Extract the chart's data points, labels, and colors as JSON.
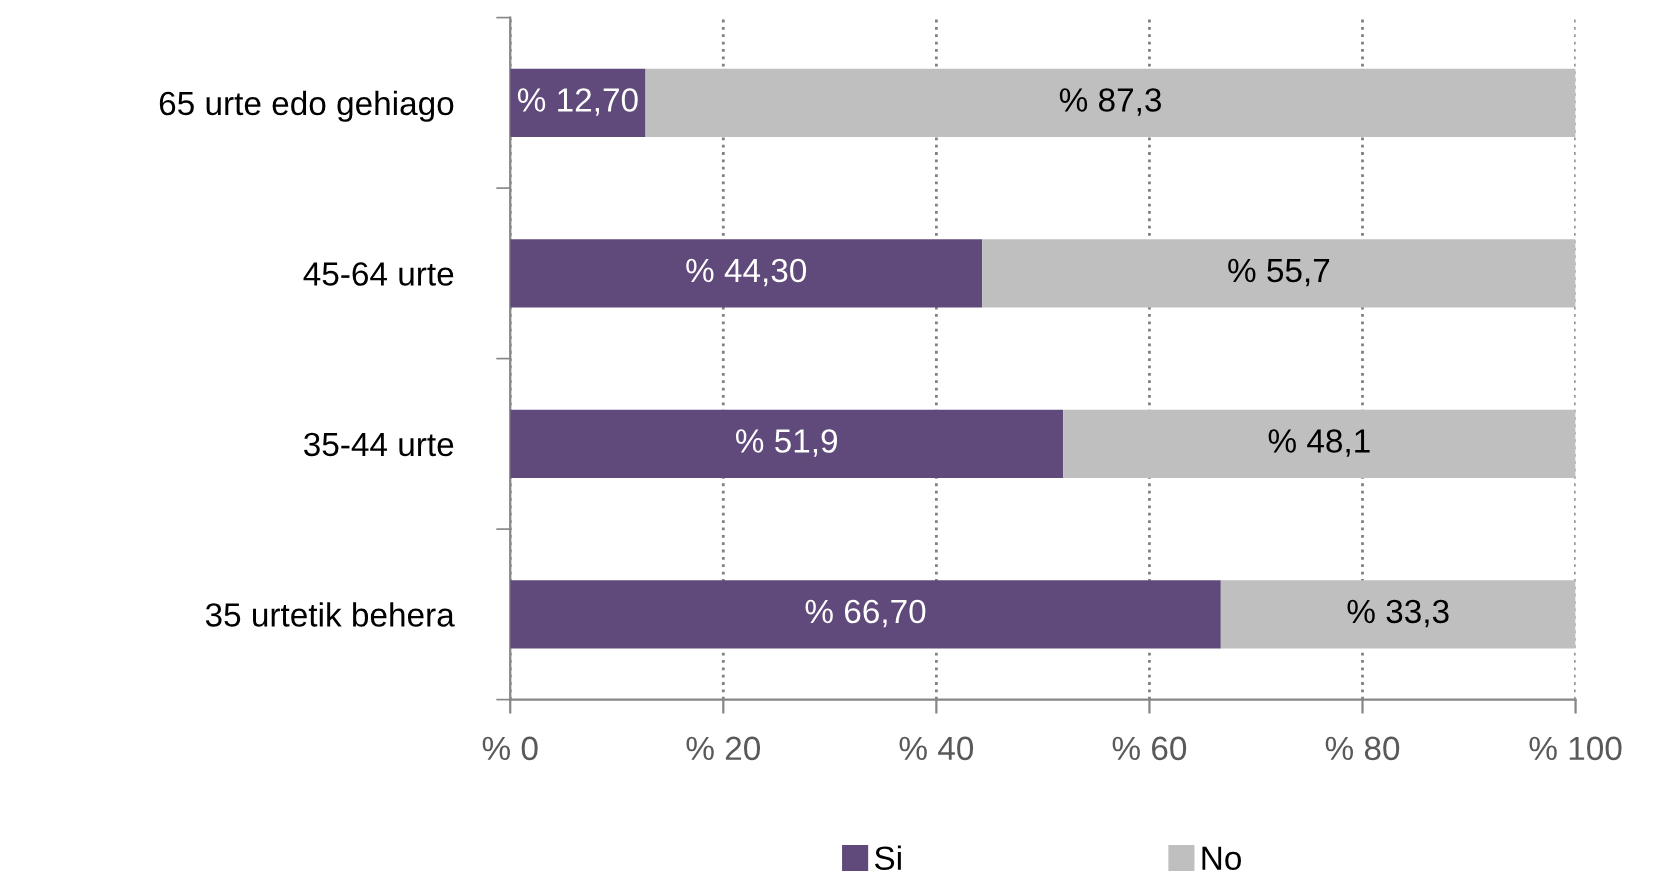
{
  "chart_data": {
    "type": "bar",
    "orientation": "horizontal",
    "stacked": true,
    "categories": [
      "65 urte edo gehiago",
      "45-64 urte",
      "35-44 urte",
      "35 urtetik behera"
    ],
    "series": [
      {
        "name": "Si",
        "color": "#604a7b",
        "values": [
          12.7,
          44.3,
          51.9,
          66.7
        ],
        "value_labels": [
          "% 12,70",
          "% 44,30",
          "% 51,9",
          "% 66,70"
        ]
      },
      {
        "name": "No",
        "color": "#bfbfbf",
        "values": [
          87.3,
          55.7,
          48.1,
          33.3
        ],
        "value_labels": [
          "% 87,3",
          "% 55,7",
          "% 48,1",
          "% 33,3"
        ]
      }
    ],
    "xlim": [
      0,
      100
    ],
    "xticks": [
      {
        "value": 0,
        "label": "% 0"
      },
      {
        "value": 20,
        "label": "% 20"
      },
      {
        "value": 40,
        "label": "% 40"
      },
      {
        "value": 60,
        "label": "% 60"
      },
      {
        "value": 80,
        "label": "% 80"
      },
      {
        "value": 100,
        "label": "% 100"
      }
    ],
    "grid": "x",
    "legend": "bottom"
  }
}
